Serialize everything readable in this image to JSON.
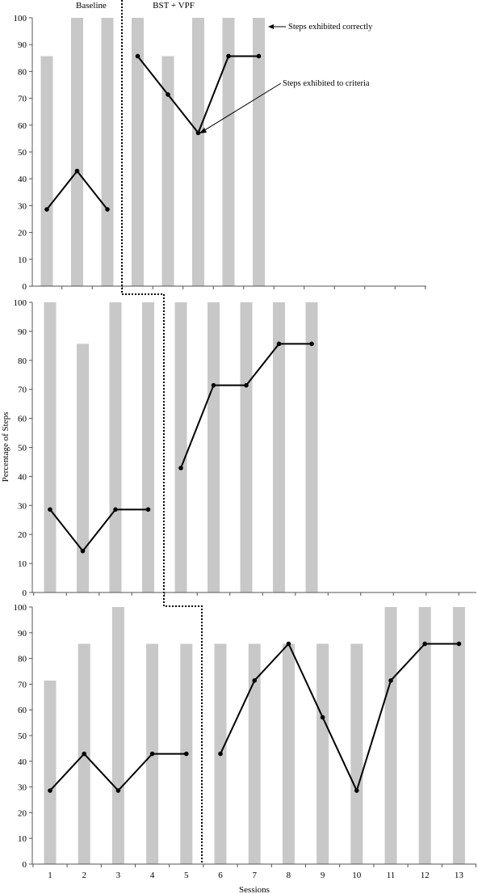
{
  "chart_data": [
    {
      "type": "bar+line",
      "ylim": [
        0,
        100
      ],
      "yticks": [
        0,
        10,
        20,
        30,
        40,
        50,
        60,
        70,
        80,
        90,
        100
      ],
      "phases": [
        "Baseline",
        "BST + VPF"
      ],
      "bars": [
        85.7,
        100,
        100,
        100,
        85.7,
        100,
        100,
        100
      ],
      "line": [
        28.6,
        42.9,
        28.6,
        85.7,
        71.4,
        57.1,
        85.7,
        85.7
      ],
      "phase_change_after_session": 3,
      "annotations": [
        "Steps exhibited correctly",
        "Steps exhibited to criteria"
      ]
    },
    {
      "type": "bar+line",
      "ylim": [
        0,
        100
      ],
      "yticks": [
        0,
        10,
        20,
        30,
        40,
        50,
        60,
        70,
        80,
        90,
        100
      ],
      "bars": [
        100,
        85.7,
        100,
        100,
        100,
        100,
        100,
        100,
        100
      ],
      "line": [
        28.6,
        14.3,
        28.6,
        28.6,
        42.9,
        71.4,
        71.4,
        85.7,
        85.7
      ],
      "phase_change_after_session": 4
    },
    {
      "type": "bar+line",
      "ylim": [
        0,
        100
      ],
      "yticks": [
        0,
        10,
        20,
        30,
        40,
        50,
        60,
        70,
        80,
        90,
        100
      ],
      "bars": [
        71.4,
        85.7,
        100,
        85.7,
        85.7,
        85.7,
        85.7,
        85.7,
        85.7,
        85.7,
        100,
        100,
        100
      ],
      "line": [
        28.6,
        42.9,
        28.6,
        42.9,
        42.9,
        42.9,
        71.4,
        85.7,
        57.1,
        28.6,
        71.4,
        85.7,
        85.7
      ],
      "phase_change_after_session": 5,
      "categories": [
        "1",
        "2",
        "3",
        "4",
        "5",
        "6",
        "7",
        "8",
        "9",
        "10",
        "11",
        "12",
        "13"
      ],
      "xlabel": "Sessions"
    }
  ],
  "ylabel": "Percentage of Steps"
}
